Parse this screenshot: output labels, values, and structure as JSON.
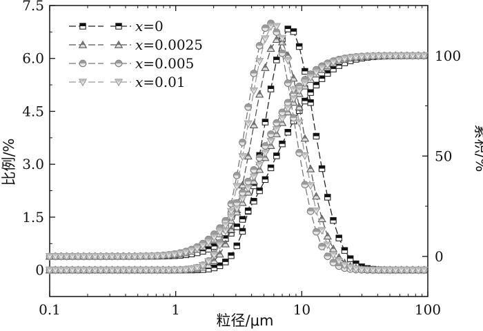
{
  "chart_data": {
    "type": "line",
    "x_scale": "log",
    "xlim": [
      0.1,
      100
    ],
    "xlabel": "粒径/μm",
    "ylabel_left": "比例/%",
    "ylabel_right": "累积/%",
    "ylim_left": [
      -0.75,
      7.5
    ],
    "ylim_right": [
      -20,
      125
    ],
    "x_ticks": [
      "0.1",
      "1",
      "10",
      "100"
    ],
    "y_ticks_left": [
      "0",
      "1.5",
      "3.0",
      "4.5",
      "6.0",
      "7.5"
    ],
    "y_ticks_right": [
      "0",
      "50",
      "100"
    ],
    "legend_placement": "top-left",
    "grid": false,
    "series": [
      {
        "name": "x=0",
        "legend_var": "x",
        "legend_value": "=0",
        "marker": "square",
        "color": "#222222",
        "fill": "#111111",
        "peak_x": 8.0,
        "peak_y": 6.85,
        "sigma_log": 0.195,
        "d50": 6.3,
        "cum_sigma_log": 0.3,
        "start_y": 0.0
      },
      {
        "name": "x=0.0025",
        "legend_var": "x",
        "legend_value": "=0.0025",
        "marker": "triangle-up",
        "color": "#555555",
        "fill": "#777777",
        "peak_x": 6.5,
        "peak_y": 6.55,
        "sigma_log": 0.2,
        "d50": 5.2,
        "cum_sigma_log": 0.3,
        "start_y": 0.0
      },
      {
        "name": "x=0.005",
        "legend_var": "x",
        "legend_value": "=0.005",
        "marker": "circle",
        "color": "#777777",
        "fill": "#9a9a9a",
        "peak_x": 5.6,
        "peak_y": 7.0,
        "sigma_log": 0.19,
        "d50": 4.7,
        "cum_sigma_log": 0.3,
        "start_y": 0.0
      },
      {
        "name": "x=0.01",
        "legend_var": "x",
        "legend_value": "=0.01",
        "marker": "triangle-down",
        "color": "#999999",
        "fill": "#bbbbbb",
        "peak_x": 6.0,
        "peak_y": 6.95,
        "sigma_log": 0.2,
        "d50": 5.0,
        "cum_sigma_log": 0.3,
        "start_y": 0.0
      }
    ],
    "cumulative_baseline": 0,
    "cumulative_plateau": 100
  }
}
